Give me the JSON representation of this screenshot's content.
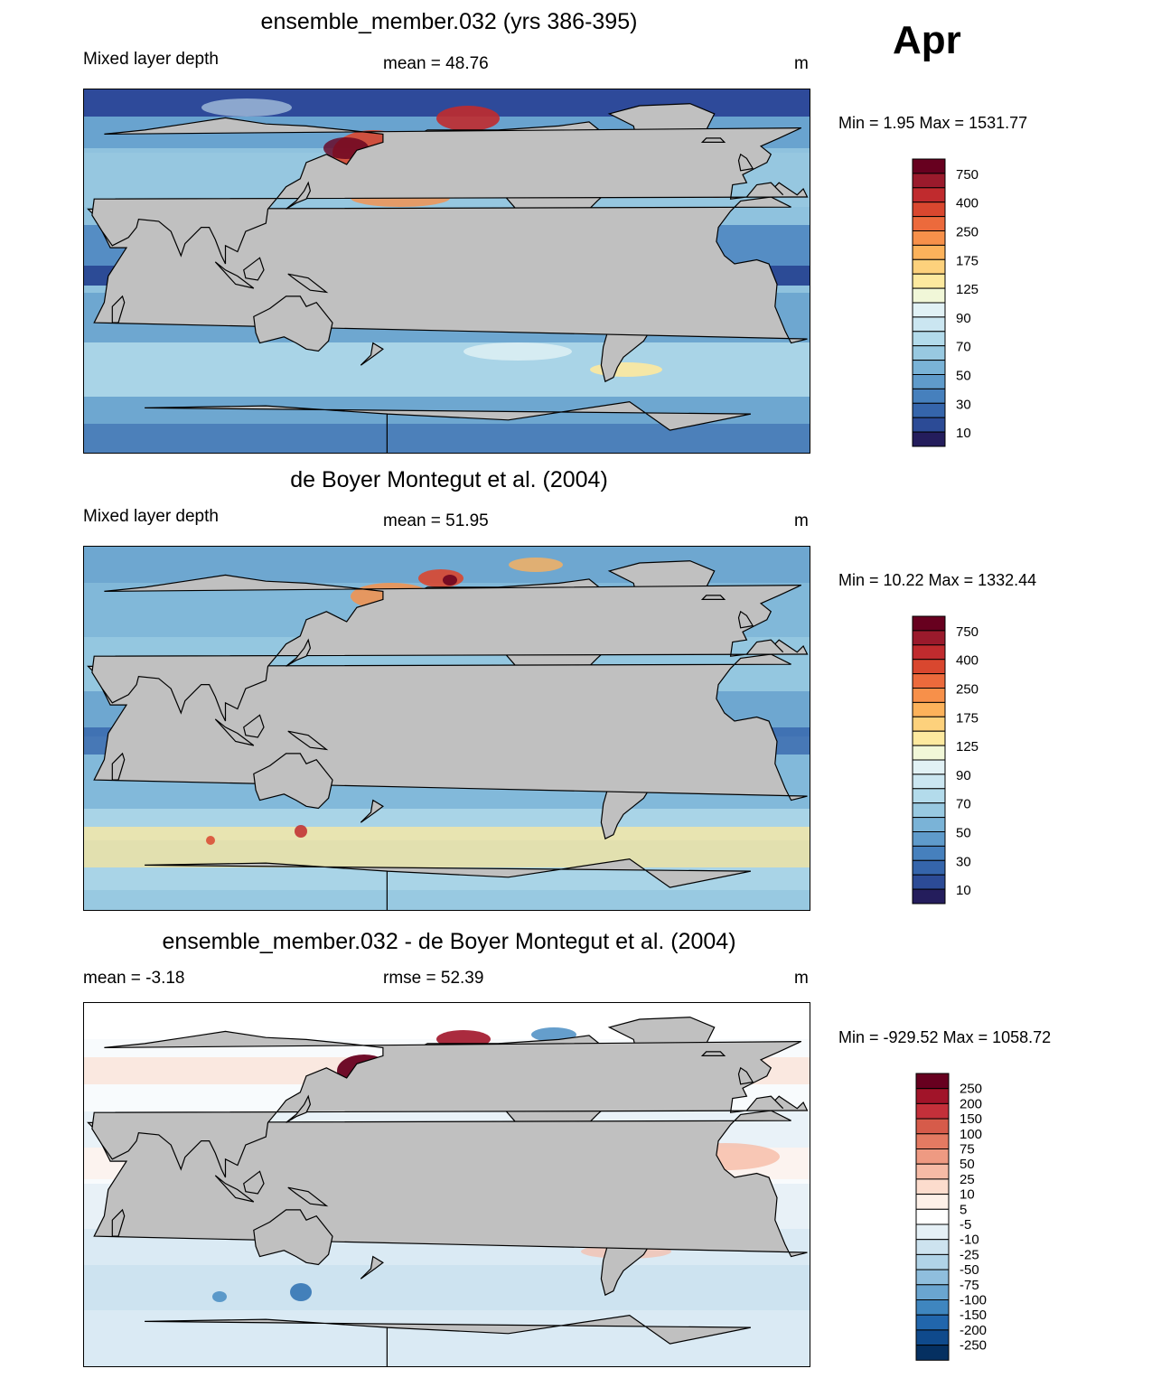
{
  "month": "Apr",
  "panels": [
    {
      "id": "model",
      "title": "ensemble_member.032 (yrs 386-395)",
      "left_label": "Mixed layer depth",
      "center_label": "mean =  48.76",
      "units": "m",
      "minmax": "Min =   1.95 Max = 1531.77",
      "colorbar": [
        "750",
        "400",
        "250",
        "175",
        "125",
        "90",
        "70",
        "50",
        "30",
        "10"
      ]
    },
    {
      "id": "obs",
      "title": "de Boyer Montegut et al. (2004)",
      "left_label": "Mixed layer depth",
      "center_label": "mean =  51.95",
      "units": "m",
      "minmax": "Min =  10.22 Max = 1332.44",
      "colorbar": [
        "750",
        "400",
        "250",
        "175",
        "125",
        "90",
        "70",
        "50",
        "30",
        "10"
      ]
    },
    {
      "id": "diff",
      "title": "ensemble_member.032 - de Boyer Montegut et al. (2004)",
      "left_label": "mean =  -3.18",
      "center_label": "rmse =  52.39",
      "units": "m",
      "minmax": "Min = -929.52 Max = 1058.72",
      "colorbar": [
        "250",
        "200",
        "150",
        "100",
        "75",
        "50",
        "25",
        "10",
        "5",
        "-5",
        "-10",
        "-25",
        "-50",
        "-75",
        "-100",
        "-150",
        "-200",
        "-250"
      ]
    }
  ],
  "colors": {
    "land": "#c0c0c0",
    "seq_scale": [
      "#67001f",
      "#a8232c",
      "#d6402d",
      "#f07a45",
      "#fbb05a",
      "#fde59a",
      "#e9f4d6",
      "#d4ecf4",
      "#b7dcea",
      "#8fc2de",
      "#5f9fcb",
      "#3f71b4",
      "#2e4a9a",
      "#1e2561"
    ],
    "div_scale": [
      "#67001f",
      "#a11429",
      "#c4303a",
      "#d65b4a",
      "#e47a62",
      "#ee9a82",
      "#f6bba6",
      "#fcdccd",
      "#fdf0e8",
      "#ffffff",
      "#e5f0f6",
      "#cde3ef",
      "#b0d3e7",
      "#8fbedd",
      "#6aa5d0",
      "#3f86bf",
      "#2166ac",
      "#0f4a8c",
      "#053061"
    ]
  }
}
